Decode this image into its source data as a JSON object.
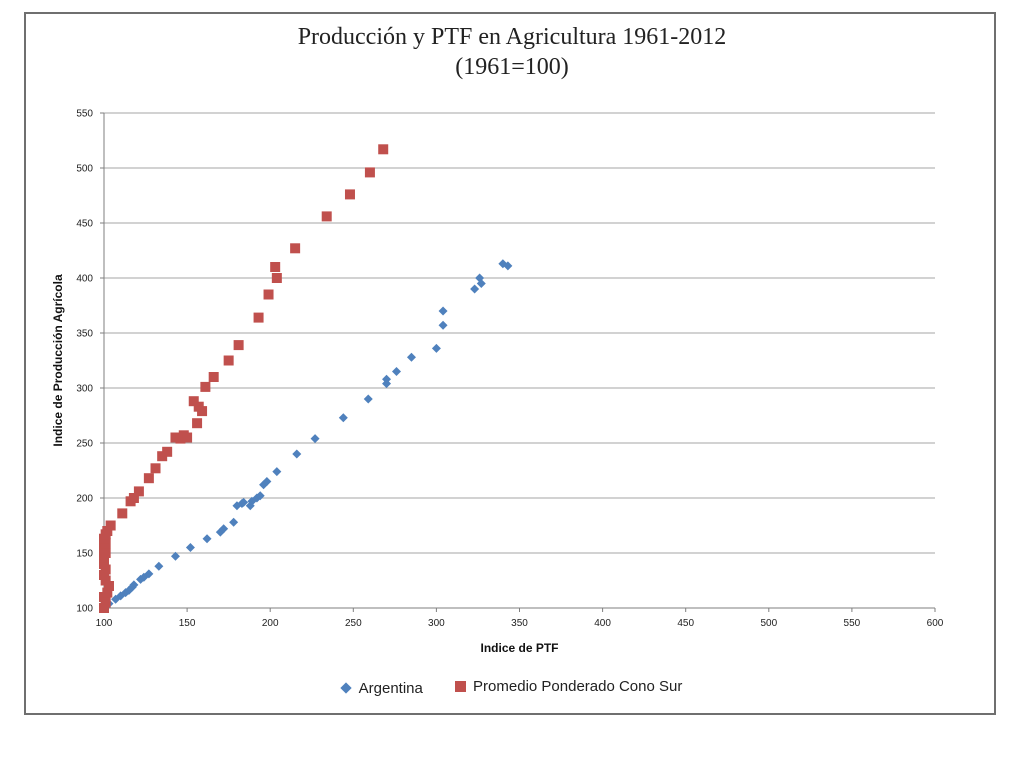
{
  "chart_data": {
    "type": "scatter",
    "title": "Producción y PTF en Agricultura 1961-2012",
    "subtitle": "(1961=100)",
    "xlabel": "Indice de PTF",
    "ylabel": "Indice de Producción Agrícola",
    "xlim": [
      100,
      600
    ],
    "ylim": [
      100,
      550
    ],
    "xticks": [
      100,
      150,
      200,
      250,
      300,
      350,
      400,
      450,
      500,
      550,
      600
    ],
    "yticks": [
      100,
      150,
      200,
      250,
      300,
      350,
      400,
      450,
      500,
      550
    ],
    "grid": "horizontal",
    "legend_position": "bottom",
    "series": [
      {
        "name": "Argentina",
        "color": "#4f81bd",
        "marker": "diamond",
        "points": [
          [
            100,
            100
          ],
          [
            103,
            104
          ],
          [
            107,
            108
          ],
          [
            110,
            111
          ],
          [
            113,
            114
          ],
          [
            115,
            116
          ],
          [
            117,
            119
          ],
          [
            118,
            121
          ],
          [
            122,
            126
          ],
          [
            124,
            128
          ],
          [
            127,
            131
          ],
          [
            133,
            138
          ],
          [
            143,
            147
          ],
          [
            152,
            155
          ],
          [
            162,
            163
          ],
          [
            170,
            169
          ],
          [
            172,
            172
          ],
          [
            178,
            178
          ],
          [
            180,
            193
          ],
          [
            183,
            195
          ],
          [
            184,
            196
          ],
          [
            188,
            193
          ],
          [
            189,
            197
          ],
          [
            192,
            200
          ],
          [
            194,
            202
          ],
          [
            196,
            212
          ],
          [
            198,
            215
          ],
          [
            204,
            224
          ],
          [
            216,
            240
          ],
          [
            227,
            254
          ],
          [
            244,
            273
          ],
          [
            259,
            290
          ],
          [
            270,
            304
          ],
          [
            270,
            308
          ],
          [
            276,
            315
          ],
          [
            285,
            328
          ],
          [
            300,
            336
          ],
          [
            304,
            357
          ],
          [
            304,
            370
          ],
          [
            323,
            390
          ],
          [
            326,
            400
          ],
          [
            327,
            395
          ],
          [
            340,
            413
          ],
          [
            343,
            411
          ]
        ]
      },
      {
        "name": "Promedio Ponderado Cono Sur",
        "color": "#c0504d",
        "marker": "square",
        "points": [
          [
            100,
            100
          ],
          [
            101,
            105
          ],
          [
            100,
            110
          ],
          [
            102,
            114
          ],
          [
            103,
            120
          ],
          [
            101,
            125
          ],
          [
            100,
            130
          ],
          [
            101,
            135
          ],
          [
            100,
            140
          ],
          [
            100,
            146
          ],
          [
            101,
            150
          ],
          [
            100,
            155
          ],
          [
            101,
            159
          ],
          [
            100,
            163
          ],
          [
            101,
            167
          ],
          [
            102,
            170
          ],
          [
            104,
            175
          ],
          [
            111,
            186
          ],
          [
            116,
            197
          ],
          [
            118,
            200
          ],
          [
            121,
            206
          ],
          [
            127,
            218
          ],
          [
            131,
            227
          ],
          [
            135,
            238
          ],
          [
            138,
            242
          ],
          [
            143,
            255
          ],
          [
            146,
            254
          ],
          [
            148,
            257
          ],
          [
            150,
            255
          ],
          [
            154,
            288
          ],
          [
            156,
            268
          ],
          [
            157,
            283
          ],
          [
            159,
            279
          ],
          [
            161,
            301
          ],
          [
            166,
            310
          ],
          [
            175,
            325
          ],
          [
            181,
            339
          ],
          [
            193,
            364
          ],
          [
            199,
            385
          ],
          [
            204,
            400
          ],
          [
            203,
            410
          ],
          [
            215,
            427
          ],
          [
            234,
            456
          ],
          [
            248,
            476
          ],
          [
            260,
            496
          ],
          [
            268,
            517
          ]
        ]
      }
    ]
  }
}
